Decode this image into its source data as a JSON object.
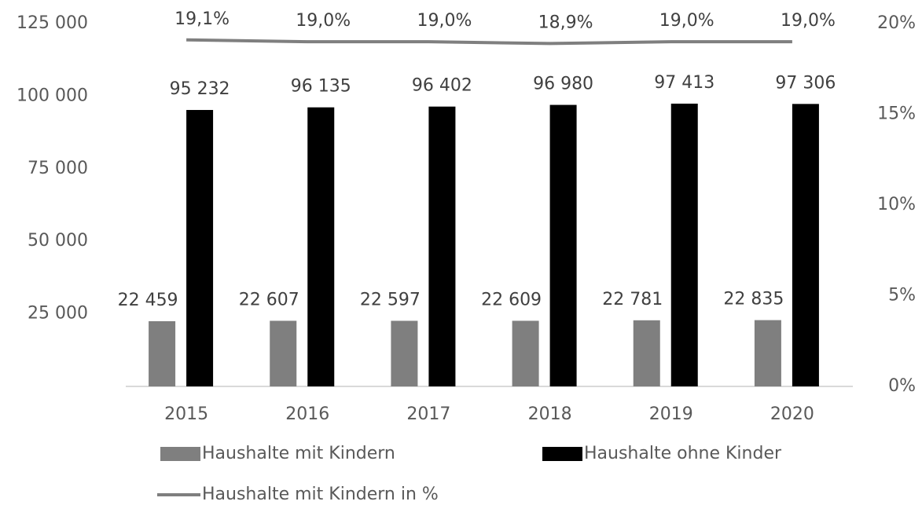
{
  "chart_data": {
    "type": "bar",
    "categories": [
      "2015",
      "2016",
      "2017",
      "2018",
      "2019",
      "2020"
    ],
    "series": [
      {
        "name": "Haushalte mit Kindern",
        "color": "#7f7f7f",
        "values": [
          22459,
          22607,
          22597,
          22609,
          22781,
          22835
        ],
        "value_labels": [
          "22 459",
          "22 607",
          "22 597",
          "22 609",
          "22 781",
          "22 835"
        ]
      },
      {
        "name": "Haushalte ohne Kinder",
        "color": "#000000",
        "values": [
          95232,
          96135,
          96402,
          96980,
          97413,
          97306
        ],
        "value_labels": [
          "95 232",
          "96 135",
          "96 402",
          "96 980",
          "97 413",
          "97 306"
        ]
      },
      {
        "name": "Haushalte mit Kindern in %",
        "type": "line",
        "axis": "y2",
        "color": "#7f7f7f",
        "values": [
          19.1,
          19.0,
          19.0,
          18.9,
          19.0,
          19.0
        ],
        "value_labels": [
          "19,1%",
          "19,0%",
          "19,0%",
          "18,9%",
          "19,0%",
          "19,0%"
        ]
      }
    ],
    "ylim": [
      0,
      125000
    ],
    "yticks": [
      {
        "value": 25000,
        "label": "25 000"
      },
      {
        "value": 50000,
        "label": "50 000"
      },
      {
        "value": 75000,
        "label": "75 000"
      },
      {
        "value": 100000,
        "label": "100 000"
      },
      {
        "value": 125000,
        "label": "125 000"
      }
    ],
    "y2lim": [
      0,
      20
    ],
    "y2ticks": [
      {
        "value": 0,
        "label": "0%"
      },
      {
        "value": 5,
        "label": "5%"
      },
      {
        "value": 10,
        "label": "10%"
      },
      {
        "value": 15,
        "label": "15%"
      },
      {
        "value": 20,
        "label": "20%"
      }
    ],
    "legend": "bottom"
  }
}
